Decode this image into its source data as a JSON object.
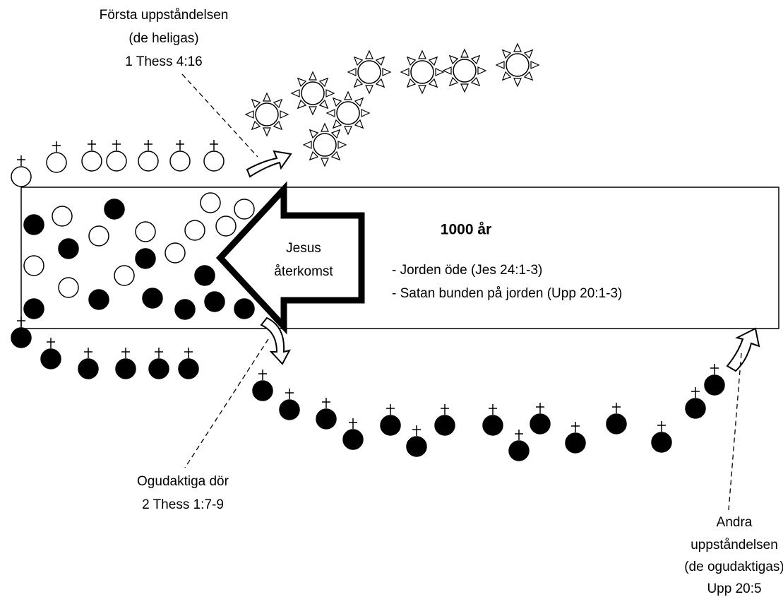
{
  "first_resurrection": {
    "lines": [
      "Första uppståndelsen",
      "(de heligas)",
      "1 Thess 4:16"
    ]
  },
  "millennium": {
    "title": "1000 år",
    "items": [
      "- Jorden öde (Jes 24:1-3)",
      "- Satan bunden på jorden (Upp 20:1-3)"
    ]
  },
  "arrow": {
    "lines": [
      "Jesus",
      "återkomst"
    ]
  },
  "wicked_die": {
    "lines": [
      "Ogudaktiga dör",
      "2 Thess 1:7-9"
    ]
  },
  "second_resurrection": {
    "lines": [
      "Andra",
      "uppståndelsen",
      "(de ogudaktigas)",
      "Upp 20:5"
    ]
  }
}
